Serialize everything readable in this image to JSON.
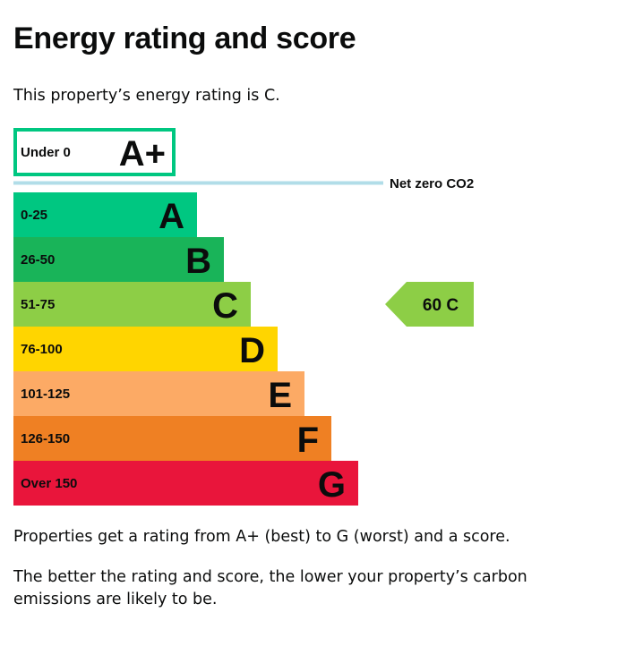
{
  "title": "Energy rating and score",
  "intro": "This property’s energy rating is C.",
  "footer": {
    "line1": "Properties get a rating from A+ (best) to G (worst) and a score.",
    "line2": "The better the rating and score, the lower your property’s carbon emissions are likely to be."
  },
  "chart_data": {
    "type": "bar",
    "orientation": "horizontal",
    "bands": [
      {
        "letter": "A+",
        "range": "Under 0",
        "color": "#00c781",
        "outlined": true
      },
      {
        "letter": "A",
        "range": "0-25",
        "color": "#00c781"
      },
      {
        "letter": "B",
        "range": "26-50",
        "color": "#19b459"
      },
      {
        "letter": "C",
        "range": "51-75",
        "color": "#8dce46"
      },
      {
        "letter": "D",
        "range": "76-100",
        "color": "#ffd500"
      },
      {
        "letter": "E",
        "range": "101-125",
        "color": "#fcaa65"
      },
      {
        "letter": "F",
        "range": "126-150",
        "color": "#ef8023"
      },
      {
        "letter": "G",
        "range": "Over 150",
        "color": "#e9153b"
      }
    ],
    "net_zero_label": "Net zero CO2",
    "net_zero_color": "#b1dde8",
    "current": {
      "score": 60,
      "letter": "C",
      "label": "60 C",
      "color": "#8dce46"
    }
  }
}
